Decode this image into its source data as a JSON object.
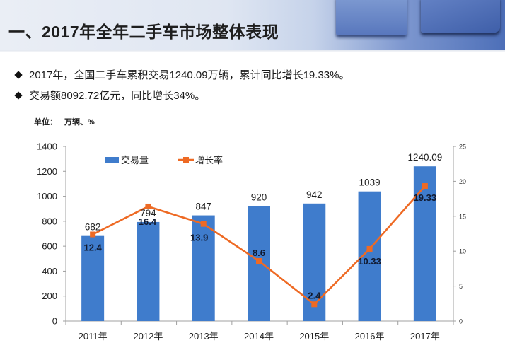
{
  "header": {
    "title": "一、2017年全年二手车市场整体表现"
  },
  "bullets": [
    "2017年，全国二手车累积交易1240.09万辆，累计同比增长19.33%。",
    "交易额8092.72亿元，同比增长34%。"
  ],
  "unit": {
    "label": "单位：",
    "value": "万辆、%"
  },
  "colors": {
    "bar": "#3f7ccc",
    "line": "#ee6a24",
    "axis": "#a0a0a0"
  },
  "chart_data": {
    "type": "bar",
    "title": "",
    "categories": [
      "2011年",
      "2012年",
      "2013年",
      "2014年",
      "2015年",
      "2016年",
      "2017年"
    ],
    "series": [
      {
        "name": "交易量",
        "type": "bar",
        "axis": "left",
        "values": [
          682,
          794,
          847,
          920,
          942,
          1039,
          1240.09
        ],
        "labels": [
          "682",
          "794",
          "847",
          "920",
          "942",
          "1039",
          "1240.09"
        ]
      },
      {
        "name": "增长率",
        "type": "line",
        "axis": "right",
        "values": [
          12.4,
          16.4,
          13.9,
          8.6,
          2.4,
          10.33,
          19.33
        ],
        "labels": [
          "12.4",
          "16.4",
          "13.9",
          "8.6",
          "2.4",
          "10.33",
          "19.33"
        ]
      }
    ],
    "xlabel": "",
    "ylabel": "万辆",
    "ylabel_right": "%",
    "ylim": [
      0,
      1400
    ],
    "ylim_right": [
      0,
      25
    ],
    "yticks": [
      0,
      200,
      400,
      600,
      800,
      1000,
      1200,
      1400
    ],
    "yticks_right": [
      0,
      5,
      10,
      15,
      20,
      25
    ],
    "legend": {
      "position": "top-left-inside",
      "entries": [
        "交易量",
        "增长率"
      ]
    },
    "grid": false
  }
}
